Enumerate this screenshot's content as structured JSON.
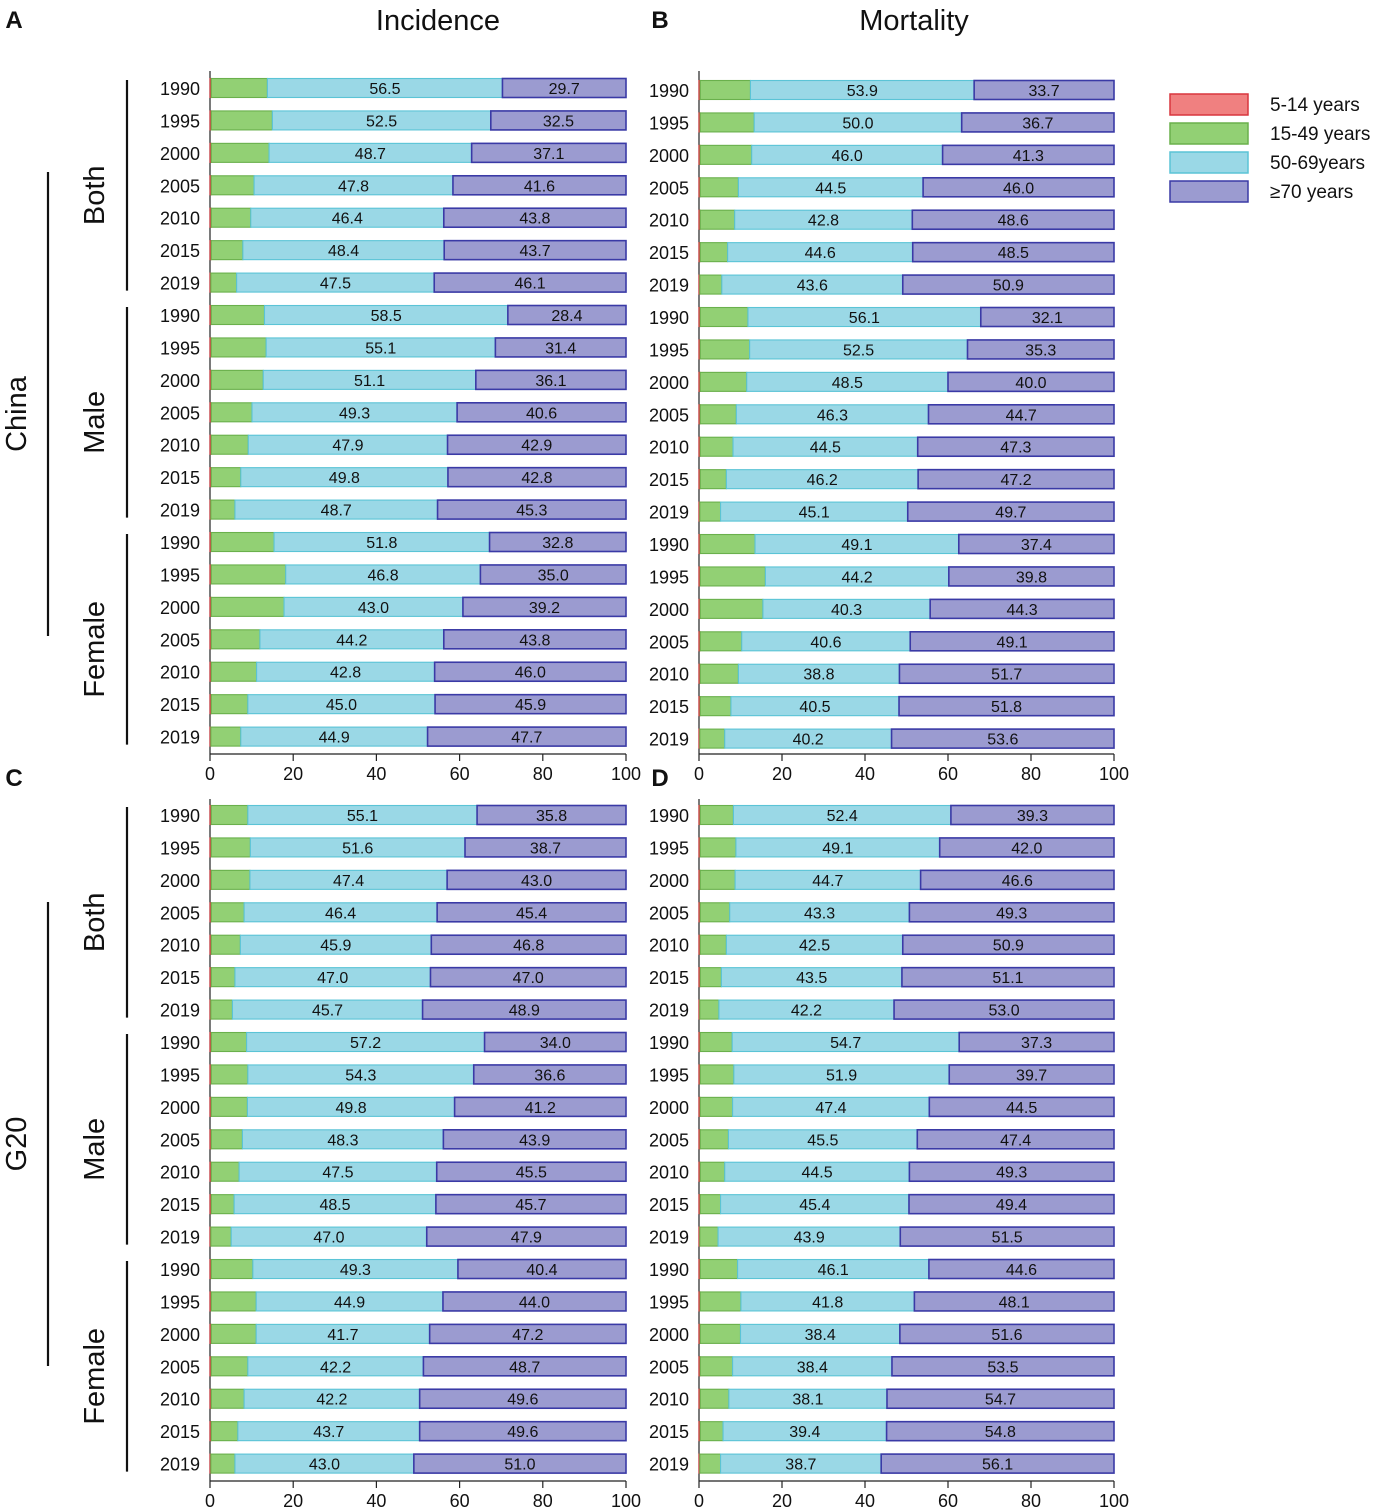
{
  "figure": {
    "panel_letters": [
      "A",
      "B",
      "C",
      "D"
    ],
    "column_titles": [
      "Incidence",
      "Mortality"
    ],
    "region_labels": [
      "China",
      "G20"
    ]
  },
  "legend": [
    {
      "label": "5-14 years",
      "color": "#f08080",
      "edge": "#d9363e"
    },
    {
      "label": "15-49 years",
      "color": "#92d074",
      "edge": "#6ab04c"
    },
    {
      "label": "50-69years",
      "color": "#9ad8e6",
      "edge": "#5bc4d6"
    },
    {
      "label": "≥70 years",
      "color": "#9b9bd0",
      "edge": "#3a3aa6"
    }
  ],
  "chart_data": [
    {
      "panel": "A",
      "type": "bar",
      "orientation": "horizontal",
      "stacked": true,
      "title": "Incidence",
      "region": "China",
      "groups": [
        "Both",
        "Male",
        "Female"
      ],
      "years": [
        "1990",
        "1995",
        "2000",
        "2005",
        "2010",
        "2015",
        "2019"
      ],
      "xlim": [
        0,
        100
      ],
      "xticks": [
        "0",
        "20",
        "40",
        "60",
        "80",
        "100"
      ],
      "rows": [
        {
          "group": "Both",
          "year": "1990",
          "values": [
            0.3,
            13.5,
            56.5,
            29.7
          ]
        },
        {
          "group": "Both",
          "year": "1995",
          "values": [
            0.3,
            14.7,
            52.5,
            32.5
          ]
        },
        {
          "group": "Both",
          "year": "2000",
          "values": [
            0.3,
            13.9,
            48.7,
            37.1
          ]
        },
        {
          "group": "Both",
          "year": "2005",
          "values": [
            0.3,
            10.3,
            47.8,
            41.6
          ]
        },
        {
          "group": "Both",
          "year": "2010",
          "values": [
            0.3,
            9.5,
            46.4,
            43.8
          ]
        },
        {
          "group": "Both",
          "year": "2015",
          "values": [
            0.3,
            7.6,
            48.4,
            43.7
          ]
        },
        {
          "group": "Both",
          "year": "2019",
          "values": [
            0.2,
            6.2,
            47.5,
            46.1
          ]
        },
        {
          "group": "Male",
          "year": "1990",
          "values": [
            0.3,
            12.8,
            58.5,
            28.4
          ]
        },
        {
          "group": "Male",
          "year": "1995",
          "values": [
            0.3,
            13.2,
            55.1,
            31.4
          ]
        },
        {
          "group": "Male",
          "year": "2000",
          "values": [
            0.3,
            12.5,
            51.1,
            36.1
          ]
        },
        {
          "group": "Male",
          "year": "2005",
          "values": [
            0.3,
            9.8,
            49.3,
            40.6
          ]
        },
        {
          "group": "Male",
          "year": "2010",
          "values": [
            0.3,
            8.9,
            47.9,
            42.9
          ]
        },
        {
          "group": "Male",
          "year": "2015",
          "values": [
            0.3,
            7.1,
            49.8,
            42.8
          ]
        },
        {
          "group": "Male",
          "year": "2019",
          "values": [
            0.2,
            5.8,
            48.7,
            45.3
          ]
        },
        {
          "group": "Female",
          "year": "1990",
          "values": [
            0.3,
            15.1,
            51.8,
            32.8
          ]
        },
        {
          "group": "Female",
          "year": "1995",
          "values": [
            0.3,
            17.9,
            46.8,
            35.0
          ]
        },
        {
          "group": "Female",
          "year": "2000",
          "values": [
            0.3,
            17.5,
            43.0,
            39.2
          ]
        },
        {
          "group": "Female",
          "year": "2005",
          "values": [
            0.3,
            11.7,
            44.2,
            43.8
          ]
        },
        {
          "group": "Female",
          "year": "2010",
          "values": [
            0.3,
            10.9,
            42.8,
            46.0
          ]
        },
        {
          "group": "Female",
          "year": "2015",
          "values": [
            0.3,
            8.8,
            45.0,
            45.9
          ]
        },
        {
          "group": "Female",
          "year": "2019",
          "values": [
            0.2,
            7.2,
            44.9,
            47.7
          ]
        }
      ]
    },
    {
      "panel": "B",
      "type": "bar",
      "orientation": "horizontal",
      "stacked": true,
      "title": "Mortality",
      "region": "China",
      "groups": [
        "Both",
        "Male",
        "Female"
      ],
      "years": [
        "1990",
        "1995",
        "2000",
        "2005",
        "2010",
        "2015",
        "2019"
      ],
      "xlim": [
        0,
        100
      ],
      "xticks": [
        "0",
        "20",
        "40",
        "60",
        "80",
        "100"
      ],
      "rows": [
        {
          "group": "Both",
          "year": "1990",
          "values": [
            0.3,
            12.1,
            53.9,
            33.7
          ]
        },
        {
          "group": "Both",
          "year": "1995",
          "values": [
            0.3,
            13.0,
            50.0,
            36.7
          ]
        },
        {
          "group": "Both",
          "year": "2000",
          "values": [
            0.3,
            12.4,
            46.0,
            41.3
          ]
        },
        {
          "group": "Both",
          "year": "2005",
          "values": [
            0.3,
            9.2,
            44.5,
            46.0
          ]
        },
        {
          "group": "Both",
          "year": "2010",
          "values": [
            0.3,
            8.3,
            42.8,
            48.6
          ]
        },
        {
          "group": "Both",
          "year": "2015",
          "values": [
            0.3,
            6.6,
            44.6,
            48.5
          ]
        },
        {
          "group": "Both",
          "year": "2019",
          "values": [
            0.2,
            5.3,
            43.6,
            50.9
          ]
        },
        {
          "group": "Male",
          "year": "1990",
          "values": [
            0.3,
            11.5,
            56.1,
            32.1
          ]
        },
        {
          "group": "Male",
          "year": "1995",
          "values": [
            0.3,
            11.9,
            52.5,
            35.3
          ]
        },
        {
          "group": "Male",
          "year": "2000",
          "values": [
            0.3,
            11.2,
            48.5,
            40.0
          ]
        },
        {
          "group": "Male",
          "year": "2005",
          "values": [
            0.3,
            8.7,
            46.3,
            44.7
          ]
        },
        {
          "group": "Male",
          "year": "2010",
          "values": [
            0.3,
            7.9,
            44.5,
            47.3
          ]
        },
        {
          "group": "Male",
          "year": "2015",
          "values": [
            0.3,
            6.3,
            46.2,
            47.2
          ]
        },
        {
          "group": "Male",
          "year": "2019",
          "values": [
            0.2,
            5.0,
            45.1,
            49.7
          ]
        },
        {
          "group": "Female",
          "year": "1990",
          "values": [
            0.3,
            13.2,
            49.1,
            37.4
          ]
        },
        {
          "group": "Female",
          "year": "1995",
          "values": [
            0.3,
            15.7,
            44.2,
            39.8
          ]
        },
        {
          "group": "Female",
          "year": "2000",
          "values": [
            0.3,
            15.1,
            40.3,
            44.3
          ]
        },
        {
          "group": "Female",
          "year": "2005",
          "values": [
            0.3,
            10.0,
            40.6,
            49.1
          ]
        },
        {
          "group": "Female",
          "year": "2010",
          "values": [
            0.3,
            9.2,
            38.8,
            51.7
          ]
        },
        {
          "group": "Female",
          "year": "2015",
          "values": [
            0.3,
            7.4,
            40.5,
            51.8
          ]
        },
        {
          "group": "Female",
          "year": "2019",
          "values": [
            0.2,
            6.0,
            40.2,
            53.6
          ]
        }
      ]
    },
    {
      "panel": "C",
      "type": "bar",
      "orientation": "horizontal",
      "stacked": true,
      "title": "Incidence",
      "region": "G20",
      "groups": [
        "Both",
        "Male",
        "Female"
      ],
      "years": [
        "1990",
        "1995",
        "2000",
        "2005",
        "2010",
        "2015",
        "2019"
      ],
      "xlim": [
        0,
        100
      ],
      "xticks": [
        "0",
        "20",
        "40",
        "60",
        "80",
        "100"
      ],
      "rows": [
        {
          "group": "Both",
          "year": "1990",
          "values": [
            0.3,
            8.8,
            55.1,
            35.8
          ]
        },
        {
          "group": "Both",
          "year": "1995",
          "values": [
            0.3,
            9.4,
            51.6,
            38.7
          ]
        },
        {
          "group": "Both",
          "year": "2000",
          "values": [
            0.3,
            9.3,
            47.4,
            43.0
          ]
        },
        {
          "group": "Both",
          "year": "2005",
          "values": [
            0.3,
            7.9,
            46.4,
            45.4
          ]
        },
        {
          "group": "Both",
          "year": "2010",
          "values": [
            0.3,
            7.0,
            45.9,
            46.8
          ]
        },
        {
          "group": "Both",
          "year": "2015",
          "values": [
            0.3,
            5.7,
            47.0,
            47.0
          ]
        },
        {
          "group": "Both",
          "year": "2019",
          "values": [
            0.2,
            5.2,
            45.7,
            48.9
          ]
        },
        {
          "group": "Male",
          "year": "1990",
          "values": [
            0.3,
            8.5,
            57.2,
            34.0
          ]
        },
        {
          "group": "Male",
          "year": "1995",
          "values": [
            0.3,
            8.8,
            54.3,
            36.6
          ]
        },
        {
          "group": "Male",
          "year": "2000",
          "values": [
            0.3,
            8.7,
            49.8,
            41.2
          ]
        },
        {
          "group": "Male",
          "year": "2005",
          "values": [
            0.3,
            7.5,
            48.3,
            43.9
          ]
        },
        {
          "group": "Male",
          "year": "2010",
          "values": [
            0.3,
            6.7,
            47.5,
            45.5
          ]
        },
        {
          "group": "Male",
          "year": "2015",
          "values": [
            0.3,
            5.5,
            48.5,
            45.7
          ]
        },
        {
          "group": "Male",
          "year": "2019",
          "values": [
            0.2,
            4.9,
            47.0,
            47.9
          ]
        },
        {
          "group": "Female",
          "year": "1990",
          "values": [
            0.3,
            10.0,
            49.3,
            40.4
          ]
        },
        {
          "group": "Female",
          "year": "1995",
          "values": [
            0.3,
            10.8,
            44.9,
            44.0
          ]
        },
        {
          "group": "Female",
          "year": "2000",
          "values": [
            0.3,
            10.8,
            41.7,
            47.2
          ]
        },
        {
          "group": "Female",
          "year": "2005",
          "values": [
            0.3,
            8.8,
            42.2,
            48.7
          ]
        },
        {
          "group": "Female",
          "year": "2010",
          "values": [
            0.3,
            7.9,
            42.2,
            49.6
          ]
        },
        {
          "group": "Female",
          "year": "2015",
          "values": [
            0.3,
            6.4,
            43.7,
            49.6
          ]
        },
        {
          "group": "Female",
          "year": "2019",
          "values": [
            0.2,
            5.8,
            43.0,
            51.0
          ]
        }
      ]
    },
    {
      "panel": "D",
      "type": "bar",
      "orientation": "horizontal",
      "stacked": true,
      "title": "Mortality",
      "region": "G20",
      "groups": [
        "Both",
        "Male",
        "Female"
      ],
      "years": [
        "1990",
        "1995",
        "2000",
        "2005",
        "2010",
        "2015",
        "2019"
      ],
      "xlim": [
        0,
        100
      ],
      "xticks": [
        "0",
        "20",
        "40",
        "60",
        "80",
        "100"
      ],
      "rows": [
        {
          "group": "Both",
          "year": "1990",
          "values": [
            0.3,
            8.0,
            52.4,
            39.3
          ]
        },
        {
          "group": "Both",
          "year": "1995",
          "values": [
            0.3,
            8.6,
            49.1,
            42.0
          ]
        },
        {
          "group": "Both",
          "year": "2000",
          "values": [
            0.3,
            8.4,
            44.7,
            46.6
          ]
        },
        {
          "group": "Both",
          "year": "2005",
          "values": [
            0.3,
            7.1,
            43.3,
            49.3
          ]
        },
        {
          "group": "Both",
          "year": "2010",
          "values": [
            0.3,
            6.3,
            42.5,
            50.9
          ]
        },
        {
          "group": "Both",
          "year": "2015",
          "values": [
            0.3,
            5.1,
            43.5,
            51.1
          ]
        },
        {
          "group": "Both",
          "year": "2019",
          "values": [
            0.2,
            4.6,
            42.2,
            53.0
          ]
        },
        {
          "group": "Male",
          "year": "1990",
          "values": [
            0.3,
            7.7,
            54.7,
            37.3
          ]
        },
        {
          "group": "Male",
          "year": "1995",
          "values": [
            0.3,
            8.1,
            51.9,
            39.7
          ]
        },
        {
          "group": "Male",
          "year": "2000",
          "values": [
            0.3,
            7.8,
            47.4,
            44.5
          ]
        },
        {
          "group": "Male",
          "year": "2005",
          "values": [
            0.3,
            6.8,
            45.5,
            47.4
          ]
        },
        {
          "group": "Male",
          "year": "2010",
          "values": [
            0.3,
            5.9,
            44.5,
            49.3
          ]
        },
        {
          "group": "Male",
          "year": "2015",
          "values": [
            0.3,
            4.9,
            45.4,
            49.4
          ]
        },
        {
          "group": "Male",
          "year": "2019",
          "values": [
            0.2,
            4.4,
            43.9,
            51.5
          ]
        },
        {
          "group": "Female",
          "year": "1990",
          "values": [
            0.3,
            9.0,
            46.1,
            44.6
          ]
        },
        {
          "group": "Female",
          "year": "1995",
          "values": [
            0.3,
            9.8,
            41.8,
            48.1
          ]
        },
        {
          "group": "Female",
          "year": "2000",
          "values": [
            0.3,
            9.7,
            38.4,
            51.6
          ]
        },
        {
          "group": "Female",
          "year": "2005",
          "values": [
            0.3,
            7.8,
            38.4,
            53.5
          ]
        },
        {
          "group": "Female",
          "year": "2010",
          "values": [
            0.3,
            6.9,
            38.1,
            54.7
          ]
        },
        {
          "group": "Female",
          "year": "2015",
          "values": [
            0.3,
            5.5,
            39.4,
            54.8
          ]
        },
        {
          "group": "Female",
          "year": "2019",
          "values": [
            0.2,
            5.0,
            38.7,
            56.1
          ]
        }
      ]
    }
  ]
}
